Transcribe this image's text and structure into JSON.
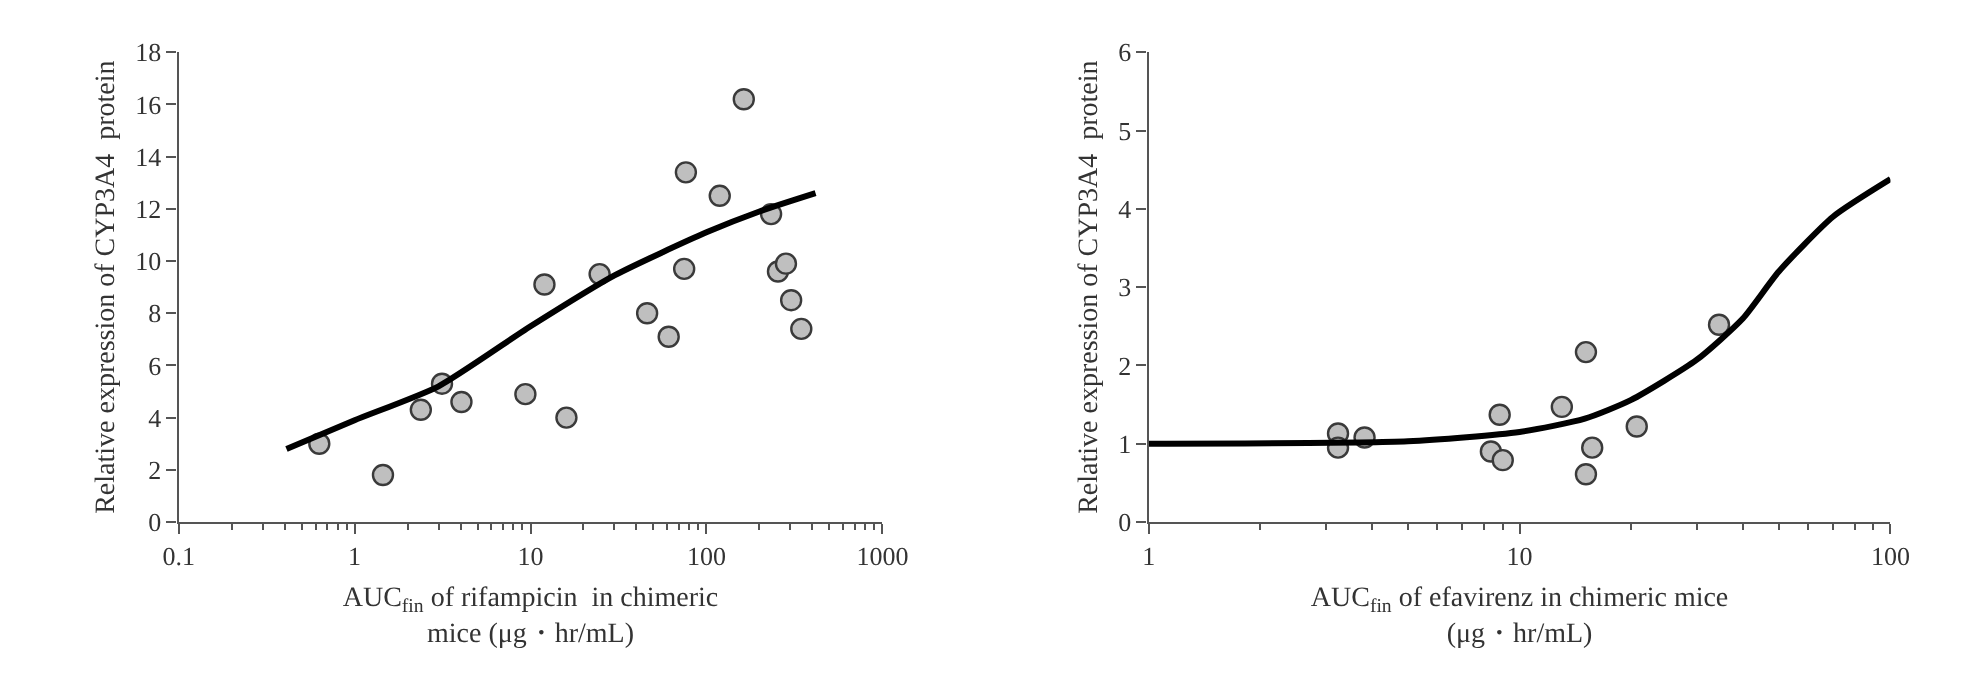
{
  "chart_data": [
    {
      "type": "scatter",
      "xlabel": "AUC$_{fin}$ of rifampicin  in chimeric\nmice (μg・hr/mL)",
      "ylabel": "Relative expression of CYP3A4  protein",
      "log": "x",
      "xlim": [
        0.1,
        1000
      ],
      "xticks": [
        0.1,
        1,
        10,
        100,
        1000
      ],
      "ylim": [
        0,
        18
      ],
      "yticks": [
        0,
        2,
        4,
        6,
        8,
        10,
        12,
        14,
        16,
        18
      ],
      "series": [
        {
          "marker": "circle",
          "color": "#bfbfbf",
          "x": [
            0.63,
            1.45,
            2.38,
            3.14,
            4.05,
            9.35,
            12,
            16,
            24.7,
            46,
            61,
            74.7,
            76.4,
            119,
            163,
            233,
            255,
            283,
            303,
            346
          ],
          "values": [
            3.0,
            1.8,
            4.3,
            5.3,
            4.6,
            4.9,
            9.1,
            4.0,
            9.5,
            8.0,
            7.1,
            9.7,
            13.4,
            12.5,
            16.2,
            11.8,
            9.6,
            9.9,
            8.5,
            7.4
          ]
        },
        {
          "type": "line",
          "marker": "none",
          "color": "#000000",
          "line_style": "solid",
          "x": [
            0.41,
            1,
            3,
            10,
            30,
            100,
            200,
            417
          ],
          "values": [
            2.8,
            3.9,
            5.2,
            7.5,
            9.45,
            11.1,
            11.9,
            12.6
          ]
        }
      ]
    },
    {
      "type": "scatter",
      "xlabel": "AUC$_{fin}$ of efavirenz in chimeric mice\n(μg・hr/mL)",
      "ylabel": "Relative expression of CYP3A4  protein",
      "log": "x",
      "xlim": [
        1,
        100
      ],
      "xticks": [
        1,
        10,
        100
      ],
      "ylim": [
        0,
        6
      ],
      "yticks": [
        0,
        1,
        2,
        3,
        4,
        5,
        6
      ],
      "series": [
        {
          "marker": "circle",
          "color": "#bfbfbf",
          "x": [
            3.24,
            3.24,
            3.82,
            8.37,
            8.84,
            9.01,
            13,
            15.1,
            15.1,
            15.7,
            20.7,
            34.5
          ],
          "values": [
            1.13,
            0.95,
            1.08,
            0.9,
            1.37,
            0.79,
            1.47,
            2.17,
            0.61,
            0.95,
            1.22,
            2.52
          ]
        },
        {
          "type": "line",
          "marker": "none",
          "color": "#000000",
          "line_style": "solid",
          "x": [
            1,
            5,
            10,
            15,
            20,
            30,
            40,
            50,
            70,
            100
          ],
          "values": [
            1.0,
            1.03,
            1.15,
            1.32,
            1.56,
            2.07,
            2.6,
            3.2,
            3.9,
            4.38
          ]
        }
      ]
    }
  ]
}
